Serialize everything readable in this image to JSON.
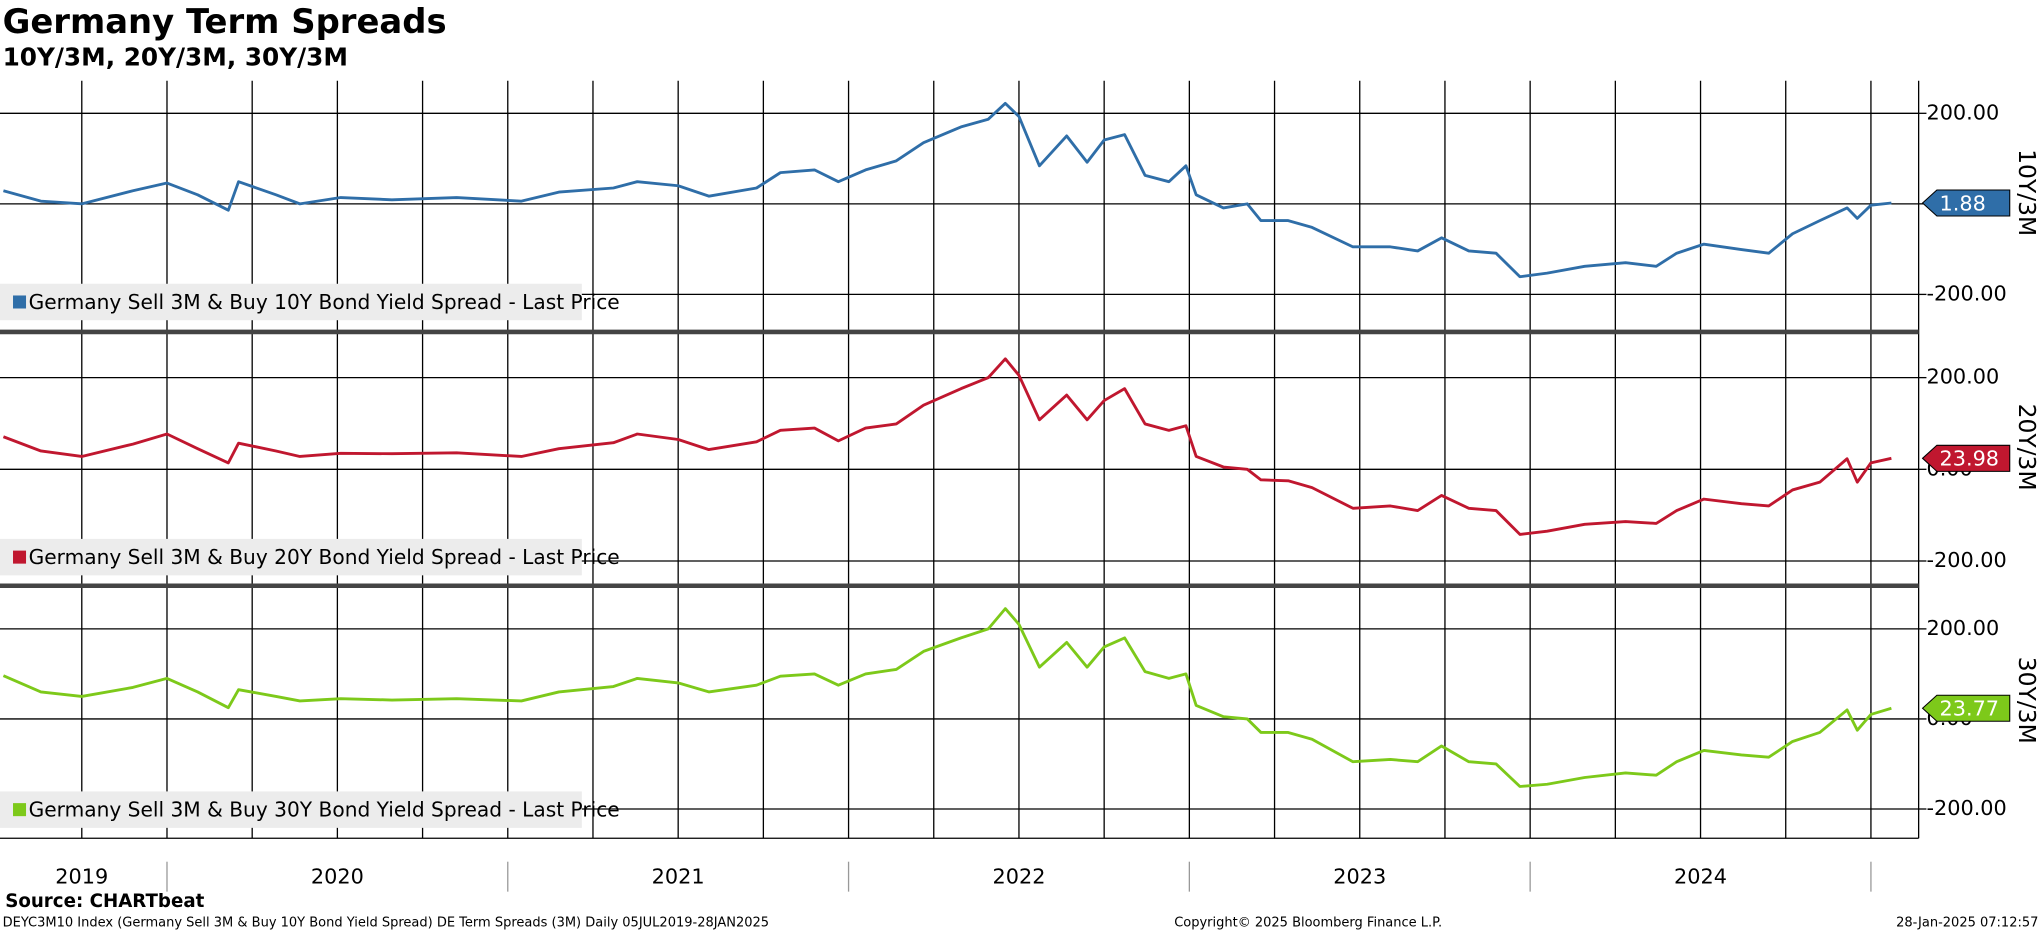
{
  "chart_data": {
    "type": "line",
    "title": "Germany Term Spreads",
    "subtitle": "10Y/3M, 20Y/3M, 30Y/3M",
    "x": [
      2019.52,
      2019.63,
      2019.75,
      2019.9,
      2020.0,
      2020.09,
      2020.18,
      2020.21,
      2020.32,
      2020.39,
      2020.51,
      2020.66,
      2020.85,
      2021.04,
      2021.15,
      2021.31,
      2021.38,
      2021.5,
      2021.59,
      2021.73,
      2021.8,
      2021.9,
      2021.97,
      2022.05,
      2022.14,
      2022.22,
      2022.33,
      2022.41,
      2022.46,
      2022.5,
      2022.56,
      2022.64,
      2022.7,
      2022.75,
      2022.81,
      2022.87,
      2022.94,
      2022.99,
      2023.02,
      2023.1,
      2023.17,
      2023.21,
      2023.29,
      2023.36,
      2023.48,
      2023.59,
      2023.67,
      2023.74,
      2023.82,
      2023.9,
      2023.97,
      2024.05,
      2024.16,
      2024.28,
      2024.37,
      2024.43,
      2024.51,
      2024.62,
      2024.7,
      2024.77,
      2024.85,
      2024.93,
      2024.96,
      2025.0,
      2025.06
    ],
    "xlim": [
      2019.51,
      2025.14
    ],
    "xticks": [
      {
        "value": 2019.75,
        "label": "2019"
      },
      {
        "value": 2020.5,
        "label": "2020"
      },
      {
        "value": 2021.5,
        "label": "2021"
      },
      {
        "value": 2022.5,
        "label": "2022"
      },
      {
        "value": 2023.5,
        "label": "2023"
      },
      {
        "value": 2024.5,
        "label": "2024"
      }
    ],
    "xgrid": [
      2019.75,
      2020,
      2020.25,
      2020.5,
      2020.75,
      2021,
      2021.25,
      2021.5,
      2021.75,
      2022,
      2022.25,
      2022.5,
      2022.75,
      2023,
      2023.25,
      2023.5,
      2023.75,
      2024,
      2024.25,
      2024.5,
      2024.75,
      2025
    ],
    "grid": true,
    "series": [
      {
        "name": "Germany Sell 3M & Buy 10Y Bond Yield Spread - Last Price",
        "label": "10Y/3M",
        "color": "#2f6ea8",
        "values": [
          29,
          6,
          0,
          29,
          46,
          20,
          -14,
          49,
          20,
          0,
          14,
          9,
          14,
          6,
          26,
          35,
          49,
          40,
          17,
          35,
          69,
          75,
          49,
          75,
          95,
          135,
          170,
          187,
          222,
          193,
          84,
          150,
          92,
          141,
          153,
          63,
          49,
          84,
          20,
          -9,
          0,
          -37,
          -37,
          -52,
          -95,
          -95,
          -104,
          -75,
          -104,
          -109,
          -161,
          -153,
          -138,
          -130,
          -138,
          -109,
          -89,
          -101,
          -109,
          -66,
          -37,
          -9,
          -32,
          -3,
          1.88
        ],
        "ylim": [
          -280,
          272
        ],
        "yticks": [
          {
            "value": -200,
            "label": "-200.00"
          },
          {
            "value": 0,
            "label": "0.00"
          },
          {
            "value": 200,
            "label": "200.00"
          }
        ]
      },
      {
        "name": "Germany Sell 3M & Buy 20Y Bond Yield Spread - Last Price",
        "label": "20Y/3M",
        "color": "#c0172f",
        "values": [
          71,
          40,
          28,
          55,
          77,
          45,
          14,
          57,
          40,
          28,
          35,
          34,
          36,
          28,
          45,
          58,
          77,
          65,
          43,
          60,
          85,
          90,
          62,
          90,
          99,
          140,
          176,
          200,
          241,
          205,
          108,
          162,
          108,
          150,
          176,
          99,
          85,
          95,
          28,
          5,
          0,
          -23,
          -25,
          -40,
          -85,
          -80,
          -90,
          -57,
          -85,
          -90,
          -142,
          -135,
          -120,
          -114,
          -118,
          -90,
          -65,
          -75,
          -80,
          -45,
          -28,
          23,
          -28,
          14,
          23.98
        ],
        "ylim": [
          -254,
          294
        ],
        "yticks": [
          {
            "value": -200,
            "label": "-200.00"
          },
          {
            "value": 0,
            "label": "0.00"
          },
          {
            "value": 200,
            "label": "200.00"
          }
        ]
      },
      {
        "name": "Germany Sell 3M & Buy 30Y Bond Yield Spread - Last Price",
        "label": "30Y/3M",
        "color": "#7dc91a",
        "values": [
          96,
          60,
          50,
          70,
          90,
          60,
          25,
          65,
          50,
          40,
          45,
          42,
          45,
          40,
          60,
          72,
          90,
          80,
          60,
          75,
          95,
          100,
          75,
          100,
          110,
          150,
          180,
          200,
          245,
          210,
          115,
          170,
          115,
          160,
          180,
          105,
          90,
          100,
          30,
          5,
          0,
          -30,
          -30,
          -45,
          -95,
          -90,
          -95,
          -60,
          -95,
          -100,
          -150,
          -145,
          -130,
          -120,
          -125,
          -95,
          -70,
          -80,
          -85,
          -50,
          -30,
          20,
          -25,
          10,
          23.77
        ],
        "ylim": [
          -265,
          290
        ],
        "yticks": [
          {
            "value": -200,
            "label": "-200.00"
          },
          {
            "value": 0,
            "label": "0.00"
          },
          {
            "value": 200,
            "label": "200.00"
          }
        ]
      }
    ]
  },
  "footer": {
    "source": "Source: CHARTbeat",
    "description": "DEYC3M10 Index (Germany Sell 3M & Buy 10Y Bond Yield Spread) DE Term Spreads (3M)  Daily 05JUL2019-28JAN2025",
    "copyright": "Copyright© 2025 Bloomberg Finance L.P.",
    "timestamp": "28-Jan-2025 07:12:57"
  }
}
